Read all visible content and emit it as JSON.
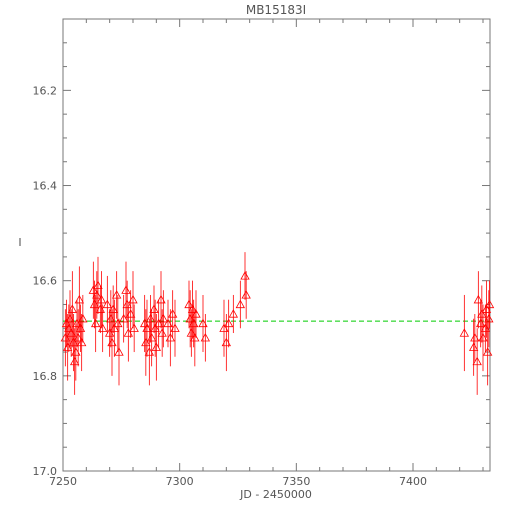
{
  "chart_data": {
    "type": "scatter",
    "title": "MB15183I",
    "xlabel": "JD - 2450000",
    "ylabel": "I",
    "xlim": [
      7250,
      7433
    ],
    "ylim": [
      17.0,
      16.05
    ],
    "y_inverted": true,
    "grid": false,
    "legend": "none",
    "x_ticks": [
      7250,
      7300,
      7350,
      7400
    ],
    "x_tick_labels": [
      "7250",
      "7300",
      "7350",
      "7400"
    ],
    "y_ticks": [
      16.2,
      16.4,
      16.6,
      16.8,
      17.0
    ],
    "y_tick_labels": [
      "16.2",
      "16.4",
      "16.6",
      "16.8",
      "17.0"
    ],
    "marker": "triangle",
    "point_color": "#ff0000",
    "reference_line": {
      "y": 16.685,
      "x_range": [
        7250,
        7433
      ],
      "color": "#00cc00",
      "style": "dashed"
    },
    "series": [
      {
        "points": [
          [
            7251.0,
            16.72,
            0.06
          ],
          [
            7251.5,
            16.69,
            0.05
          ],
          [
            7252.0,
            16.74,
            0.07
          ],
          [
            7252.5,
            16.7,
            0.05
          ],
          [
            7253.0,
            16.68,
            0.06
          ],
          [
            7253.5,
            16.71,
            0.05
          ],
          [
            7254.0,
            16.66,
            0.08
          ],
          [
            7254.5,
            16.73,
            0.06
          ],
          [
            7255.0,
            16.77,
            0.07
          ],
          [
            7255.5,
            16.75,
            0.06
          ],
          [
            7256.0,
            16.69,
            0.05
          ],
          [
            7256.5,
            16.72,
            0.06
          ],
          [
            7257.0,
            16.64,
            0.07
          ],
          [
            7257.5,
            16.7,
            0.05
          ],
          [
            7258.0,
            16.73,
            0.06
          ],
          [
            7258.5,
            16.68,
            0.05
          ],
          [
            7263.0,
            16.62,
            0.06
          ],
          [
            7263.5,
            16.65,
            0.05
          ],
          [
            7264.0,
            16.69,
            0.06
          ],
          [
            7264.5,
            16.63,
            0.05
          ],
          [
            7265.0,
            16.61,
            0.06
          ],
          [
            7266.0,
            16.66,
            0.05
          ],
          [
            7266.5,
            16.64,
            0.06
          ],
          [
            7267.0,
            16.7,
            0.05
          ],
          [
            7269.0,
            16.65,
            0.06
          ],
          [
            7270.0,
            16.71,
            0.05
          ],
          [
            7270.5,
            16.68,
            0.06
          ],
          [
            7271.0,
            16.73,
            0.07
          ],
          [
            7271.5,
            16.66,
            0.05
          ],
          [
            7272.0,
            16.7,
            0.06
          ],
          [
            7273.0,
            16.63,
            0.05
          ],
          [
            7273.5,
            16.69,
            0.06
          ],
          [
            7274.0,
            16.75,
            0.07
          ],
          [
            7276.0,
            16.68,
            0.05
          ],
          [
            7277.0,
            16.62,
            0.06
          ],
          [
            7277.5,
            16.65,
            0.05
          ],
          [
            7278.0,
            16.71,
            0.06
          ],
          [
            7279.0,
            16.67,
            0.05
          ],
          [
            7280.0,
            16.64,
            0.06
          ],
          [
            7280.5,
            16.7,
            0.05
          ],
          [
            7285.0,
            16.69,
            0.06
          ],
          [
            7285.5,
            16.73,
            0.07
          ],
          [
            7286.0,
            16.7,
            0.06
          ],
          [
            7287.0,
            16.75,
            0.07
          ],
          [
            7287.5,
            16.68,
            0.05
          ],
          [
            7288.0,
            16.72,
            0.06
          ],
          [
            7289.0,
            16.66,
            0.05
          ],
          [
            7289.5,
            16.7,
            0.06
          ],
          [
            7290.0,
            16.74,
            0.07
          ],
          [
            7291.0,
            16.69,
            0.05
          ],
          [
            7292.0,
            16.64,
            0.06
          ],
          [
            7292.5,
            16.71,
            0.05
          ],
          [
            7293.0,
            16.68,
            0.06
          ],
          [
            7295.0,
            16.69,
            0.05
          ],
          [
            7296.0,
            16.72,
            0.06
          ],
          [
            7297.0,
            16.67,
            0.05
          ],
          [
            7298.0,
            16.7,
            0.06
          ],
          [
            7304.0,
            16.65,
            0.05
          ],
          [
            7304.5,
            16.68,
            0.06
          ],
          [
            7305.0,
            16.71,
            0.05
          ],
          [
            7305.5,
            16.66,
            0.06
          ],
          [
            7306.0,
            16.69,
            0.05
          ],
          [
            7306.5,
            16.72,
            0.06
          ],
          [
            7307.0,
            16.67,
            0.05
          ],
          [
            7310.0,
            16.69,
            0.06
          ],
          [
            7311.0,
            16.72,
            0.05
          ],
          [
            7319.0,
            16.7,
            0.06
          ],
          [
            7320.0,
            16.73,
            0.06
          ],
          [
            7321.0,
            16.69,
            0.05
          ],
          [
            7323.0,
            16.67,
            0.04
          ],
          [
            7326.0,
            16.65,
            0.05
          ],
          [
            7328.0,
            16.59,
            0.05
          ],
          [
            7328.5,
            16.63,
            0.05
          ],
          [
            7422.0,
            16.71,
            0.08
          ],
          [
            7426.0,
            16.74,
            0.06
          ],
          [
            7426.5,
            16.72,
            0.05
          ],
          [
            7427.5,
            16.77,
            0.07
          ],
          [
            7428.0,
            16.64,
            0.06
          ],
          [
            7429.0,
            16.69,
            0.05
          ],
          [
            7429.5,
            16.67,
            0.06
          ],
          [
            7430.0,
            16.72,
            0.07
          ],
          [
            7431.0,
            16.7,
            0.05
          ],
          [
            7431.5,
            16.66,
            0.06
          ],
          [
            7432.0,
            16.75,
            0.07
          ],
          [
            7432.5,
            16.68,
            0.06
          ],
          [
            7432.8,
            16.65,
            0.05
          ]
        ]
      }
    ]
  }
}
